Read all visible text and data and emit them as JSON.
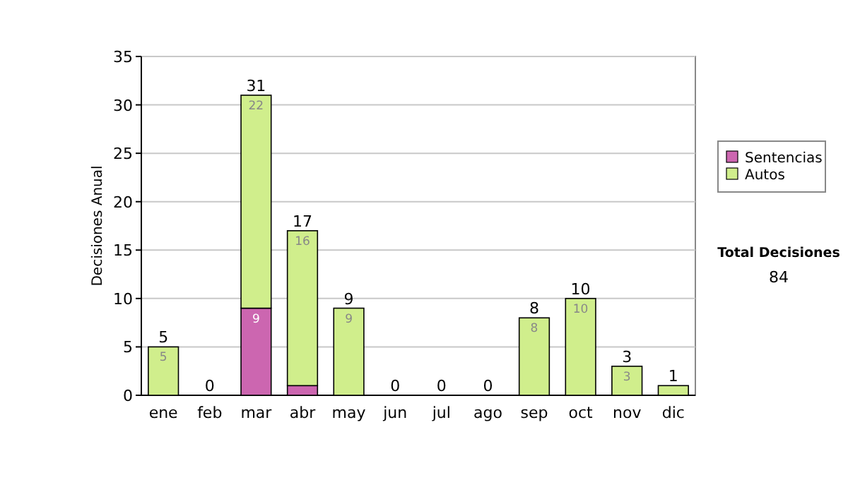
{
  "chart_data": {
    "type": "bar",
    "stacked": true,
    "ylabel": "Decisiones Anual",
    "categories": [
      "ene",
      "feb",
      "mar",
      "abr",
      "may",
      "jun",
      "jul",
      "ago",
      "sep",
      "oct",
      "nov",
      "dic"
    ],
    "series": [
      {
        "name": "Sentencias",
        "color": "#cc66b0",
        "values": [
          0,
          0,
          9,
          1,
          0,
          0,
          0,
          0,
          0,
          0,
          0,
          0
        ],
        "value_labels": [
          null,
          null,
          "9",
          null,
          null,
          null,
          null,
          null,
          null,
          null,
          null,
          null
        ]
      },
      {
        "name": "Autos",
        "color": "#d0ee8c",
        "values": [
          5,
          0,
          22,
          16,
          9,
          0,
          0,
          0,
          8,
          10,
          3,
          1
        ],
        "value_labels": [
          "5",
          null,
          "22",
          "16",
          "9",
          null,
          null,
          null,
          "8",
          "10",
          "3",
          null
        ]
      }
    ],
    "totals": [
      "5",
      "0",
      "31",
      "17",
      "9",
      "0",
      "0",
      "0",
      "8",
      "10",
      "3",
      "1"
    ],
    "ylim": [
      0,
      35
    ],
    "yticks": [
      0,
      5,
      10,
      15,
      20,
      25,
      30,
      35
    ],
    "grid": "y",
    "legend": "right",
    "annotations": [
      "Total Decisiones",
      "84"
    ]
  }
}
